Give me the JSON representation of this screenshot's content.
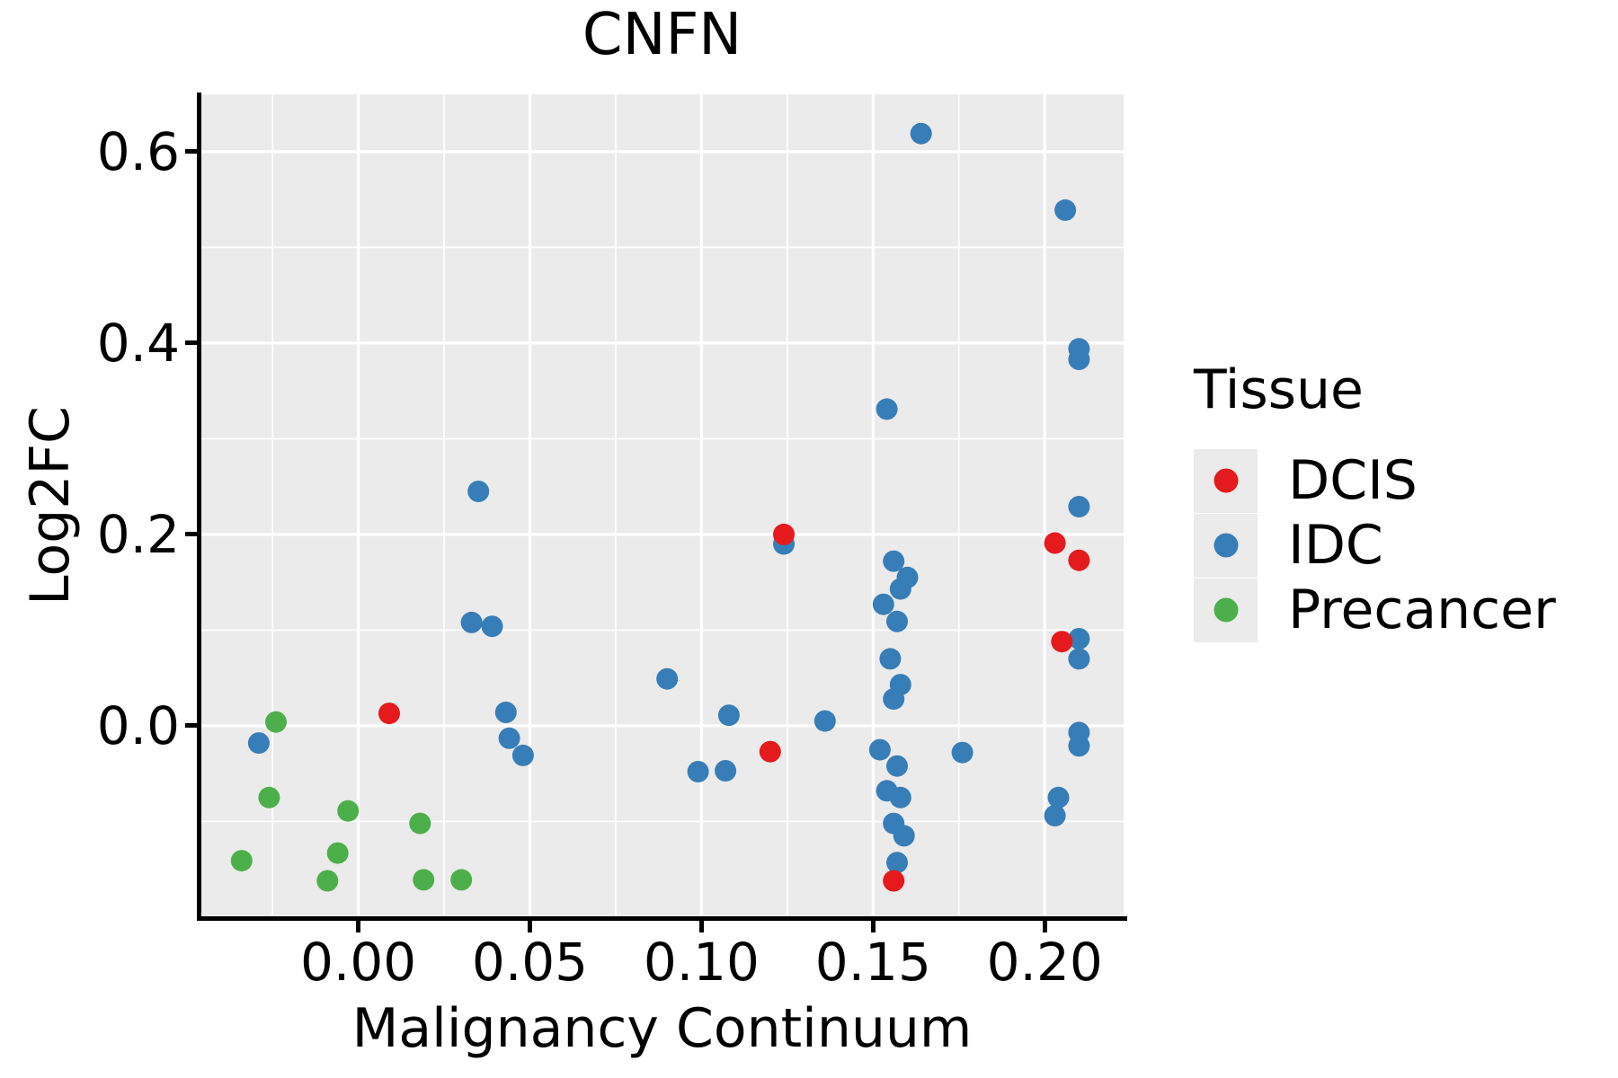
{
  "title": "CNFN",
  "legend": {
    "title": "Tissue",
    "entries": [
      {
        "label": "DCIS",
        "color": "#e41a1c"
      },
      {
        "label": "IDC",
        "color": "#377eb8"
      },
      {
        "label": "Precancer",
        "color": "#4daf4a"
      }
    ]
  },
  "colors": {
    "panel_background": "#ebebeb",
    "gridline": "#ffffff",
    "axis": "#000000",
    "text": "#000000"
  },
  "chart_data": {
    "type": "scatter",
    "title": "CNFN",
    "xlabel": "Malignancy Continuum",
    "ylabel": "Log2FC",
    "xlim": [
      -0.046,
      0.223
    ],
    "ylim": [
      -0.201,
      0.66
    ],
    "grid": true,
    "x_major_ticks": [
      0.0,
      0.05,
      0.1,
      0.15,
      0.2
    ],
    "x_tick_labels": [
      "0.00",
      "0.05",
      "0.10",
      "0.15",
      "0.20"
    ],
    "x_minor_ticks": [
      -0.025,
      0.025,
      0.075,
      0.125,
      0.175
    ],
    "y_major_ticks": [
      0.0,
      0.2,
      0.4,
      0.6
    ],
    "y_tick_labels": [
      "0.0",
      "0.2",
      "0.4",
      "0.6"
    ],
    "y_minor_ticks": [
      -0.1,
      0.1,
      0.3,
      0.5
    ],
    "legend_title": "Tissue",
    "legend_position": "right",
    "point_radius_px": 12,
    "series": [
      {
        "name": "DCIS",
        "color": "#e41a1c",
        "points": [
          [
            0.009,
            0.013
          ],
          [
            0.124,
            0.2
          ],
          [
            0.12,
            -0.027
          ],
          [
            0.156,
            -0.162
          ],
          [
            0.203,
            0.191
          ],
          [
            0.21,
            0.173
          ],
          [
            0.205,
            0.088
          ]
        ]
      },
      {
        "name": "IDC",
        "color": "#377eb8",
        "points": [
          [
            -0.029,
            -0.018
          ],
          [
            0.035,
            0.245
          ],
          [
            0.033,
            0.108
          ],
          [
            0.039,
            0.104
          ],
          [
            0.043,
            0.014
          ],
          [
            0.044,
            -0.013
          ],
          [
            0.048,
            -0.031
          ],
          [
            0.09,
            0.049
          ],
          [
            0.099,
            -0.048
          ],
          [
            0.107,
            -0.047
          ],
          [
            0.108,
            0.011
          ],
          [
            0.124,
            0.19
          ],
          [
            0.136,
            0.005
          ],
          [
            0.154,
            0.331
          ],
          [
            0.164,
            0.619
          ],
          [
            0.156,
            0.172
          ],
          [
            0.16,
            0.155
          ],
          [
            0.158,
            0.143
          ],
          [
            0.153,
            0.127
          ],
          [
            0.157,
            0.109
          ],
          [
            0.155,
            0.07
          ],
          [
            0.158,
            0.043
          ],
          [
            0.156,
            0.028
          ],
          [
            0.152,
            -0.025
          ],
          [
            0.157,
            -0.042
          ],
          [
            0.154,
            -0.068
          ],
          [
            0.158,
            -0.075
          ],
          [
            0.156,
            -0.102
          ],
          [
            0.159,
            -0.115
          ],
          [
            0.157,
            -0.143
          ],
          [
            0.176,
            -0.028
          ],
          [
            0.206,
            0.539
          ],
          [
            0.21,
            0.394
          ],
          [
            0.21,
            0.383
          ],
          [
            0.21,
            0.229
          ],
          [
            0.21,
            0.091
          ],
          [
            0.21,
            0.07
          ],
          [
            0.21,
            -0.007
          ],
          [
            0.21,
            -0.021
          ],
          [
            0.204,
            -0.075
          ],
          [
            0.203,
            -0.094
          ]
        ]
      },
      {
        "name": "Precancer",
        "color": "#4daf4a",
        "points": [
          [
            -0.024,
            0.004
          ],
          [
            -0.026,
            -0.075
          ],
          [
            -0.003,
            -0.089
          ],
          [
            0.018,
            -0.102
          ],
          [
            -0.034,
            -0.141
          ],
          [
            -0.006,
            -0.133
          ],
          [
            -0.009,
            -0.162
          ],
          [
            0.019,
            -0.161
          ],
          [
            0.03,
            -0.161
          ]
        ]
      }
    ]
  }
}
